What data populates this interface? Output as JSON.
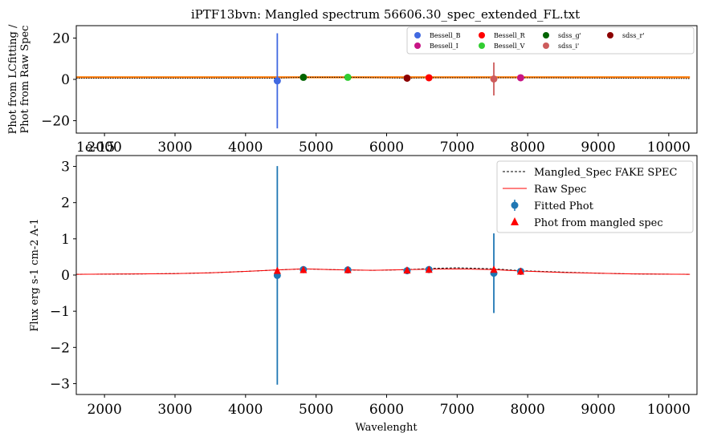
{
  "chart_data": [
    {
      "type": "scatter",
      "title": "iPTF13bvn: Mangled spectrum 56606.30_spec_extended_FL.txt",
      "ylabel_line1": "Phot from LCfitting /",
      "ylabel_line2": "Phot from Raw Spec",
      "xlabel": "",
      "xlim": [
        1600,
        10400
      ],
      "ylim": [
        -26,
        26
      ],
      "xticks": [
        2000,
        3000,
        4000,
        5000,
        6000,
        7000,
        8000,
        9000,
        10000
      ],
      "yticks": [
        -20,
        0,
        20
      ],
      "offset_text": "1e-15",
      "ratio_line": {
        "x": [
          1600,
          10300
        ],
        "y": [
          1.0,
          1.0
        ],
        "color": "#ff7f0e"
      },
      "ratio_dotted": {
        "x": [
          1600,
          4450,
          4820,
          5450,
          6290,
          6600,
          7520,
          7900,
          10300
        ],
        "y": [
          0.6,
          0.6,
          1.0,
          1.0,
          0.6,
          0.8,
          0.8,
          0.8,
          0.4
        ]
      },
      "series": [
        {
          "name": "Bessell_B",
          "x": 4450,
          "y": -0.7,
          "err": 23,
          "color": "#4169e1"
        },
        {
          "name": "Bessell_I",
          "x": 7900,
          "y": 0.8,
          "err": 0,
          "color": "#c71585"
        },
        {
          "name": "Bessell_R",
          "x": 6600,
          "y": 0.8,
          "err": 0,
          "color": "#ff0000"
        },
        {
          "name": "Bessell_V",
          "x": 5450,
          "y": 1.0,
          "err": 0,
          "color": "#32cd32"
        },
        {
          "name": "sdss_g'",
          "x": 4820,
          "y": 1.0,
          "err": 0,
          "color": "#006400"
        },
        {
          "name": "sdss_i'",
          "x": 7520,
          "y": 0.2,
          "err": 8,
          "color": "#cd5c5c"
        },
        {
          "name": "sdss_r'",
          "x": 6290,
          "y": 0.6,
          "err": 0,
          "color": "#8b0000"
        }
      ]
    },
    {
      "type": "line",
      "title": "",
      "xlabel": "Wavelenght",
      "ylabel": "Flux erg s-1 cm-2 A-1",
      "xlim": [
        1600,
        10400
      ],
      "ylim": [
        -3.3,
        3.3
      ],
      "xticks": [
        2000,
        3000,
        4000,
        5000,
        6000,
        7000,
        8000,
        9000,
        10000
      ],
      "yticks": [
        -3,
        -2,
        -1,
        0,
        1,
        2,
        3
      ],
      "legend": {
        "mangled": "Mangled_Spec FAKE SPEC",
        "raw": "Raw Spec",
        "fitted": "Fitted Phot",
        "photmangled": "Phot from mangled spec"
      },
      "mangled_spec": {
        "x": [
          1600,
          2500,
          3000,
          3500,
          4000,
          4450,
          4820,
          5200,
          5450,
          5800,
          6100,
          6290,
          6600,
          7000,
          7520,
          7900,
          8500,
          9000,
          9500,
          10300
        ],
        "y": [
          0.02,
          0.03,
          0.04,
          0.06,
          0.1,
          0.14,
          0.17,
          0.15,
          0.14,
          0.13,
          0.14,
          0.15,
          0.18,
          0.2,
          0.17,
          0.12,
          0.08,
          0.05,
          0.03,
          0.02
        ]
      },
      "raw_spec": {
        "x": [
          1600,
          2500,
          3000,
          3500,
          4000,
          4450,
          4820,
          5200,
          5450,
          5800,
          6100,
          6290,
          6600,
          7000,
          7520,
          7900,
          8500,
          9000,
          9500,
          10300
        ],
        "y": [
          0.02,
          0.03,
          0.04,
          0.06,
          0.1,
          0.14,
          0.17,
          0.15,
          0.14,
          0.13,
          0.14,
          0.15,
          0.16,
          0.17,
          0.15,
          0.11,
          0.07,
          0.05,
          0.03,
          0.02
        ]
      },
      "fitted_phot": {
        "x": [
          4450,
          4820,
          5450,
          6290,
          6600,
          7520,
          7900
        ],
        "y": [
          -0.01,
          0.15,
          0.14,
          0.12,
          0.15,
          0.05,
          0.1
        ],
        "err": [
          3.02,
          0,
          0,
          0,
          0,
          1.1,
          0
        ]
      },
      "phot_mangled": {
        "x": [
          4450,
          4820,
          5450,
          6290,
          6600,
          7520,
          7900
        ],
        "y": [
          0.12,
          0.14,
          0.14,
          0.13,
          0.15,
          0.15,
          0.1
        ]
      }
    }
  ]
}
